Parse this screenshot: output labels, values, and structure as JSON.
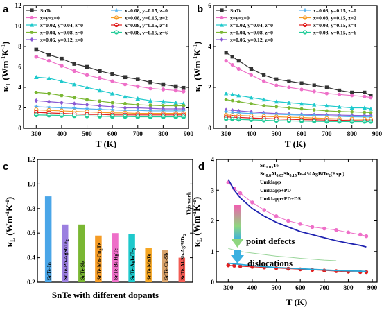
{
  "chart_data": [
    {
      "panel": "a",
      "type": "line",
      "xlabel_main": "T",
      "xlabel_unit": " (K)",
      "ylabel_main": "κ",
      "ylabel_sub": "T",
      "ylabel_unit": " (Wm",
      "ylabel_exp": "-1",
      "ylabel_mid": "K",
      "ylabel_exp2": "-1",
      "ylabel_end": ")",
      "xlim": [
        250,
        900
      ],
      "ylim": [
        0,
        12
      ],
      "xticks": [
        300,
        400,
        500,
        600,
        700,
        800,
        900
      ],
      "yticks": [
        0,
        2,
        4,
        6,
        8,
        10,
        12
      ],
      "x": [
        300,
        350,
        400,
        450,
        500,
        550,
        600,
        650,
        700,
        750,
        800,
        850,
        880
      ],
      "series": [
        {
          "name": "SnTe",
          "color": "#333333",
          "marker": "square",
          "values": [
            7.7,
            7.2,
            6.8,
            6.3,
            6.0,
            5.6,
            5.3,
            5.0,
            4.8,
            4.5,
            4.3,
            4.1,
            3.95
          ]
        },
        {
          "name": "x=y=z=0",
          "color": "#ee6fc8",
          "marker": "circle",
          "values": [
            7.0,
            6.6,
            6.1,
            5.6,
            5.2,
            4.9,
            4.6,
            4.3,
            4.1,
            3.9,
            3.8,
            3.7,
            3.6
          ]
        },
        {
          "name": "x=0.02, y=0.04, z=0",
          "color": "#1ec9cc",
          "marker": "triangle",
          "values": [
            5.0,
            4.9,
            4.6,
            4.3,
            4.0,
            3.7,
            3.4,
            3.1,
            2.9,
            2.7,
            2.6,
            2.5,
            2.4
          ]
        },
        {
          "name": "x=0.04, y=0.08, z=0",
          "color": "#7ab733",
          "marker": "hexagon",
          "values": [
            3.5,
            3.4,
            3.2,
            3.0,
            2.8,
            2.65,
            2.5,
            2.4,
            2.3,
            2.25,
            2.2,
            2.2,
            2.2
          ]
        },
        {
          "name": "x=0.06, y=0.12, z=0",
          "color": "#8a5ad3",
          "marker": "diamond",
          "values": [
            2.7,
            2.6,
            2.5,
            2.4,
            2.3,
            2.2,
            2.1,
            2.0,
            2.0,
            1.95,
            1.9,
            1.9,
            1.9
          ]
        },
        {
          "name": "x=0.08, y=0.15, z=0",
          "color": "#53b2ee",
          "marker": "star",
          "values": [
            2.1,
            2.05,
            2.0,
            1.95,
            1.9,
            1.85,
            1.8,
            1.75,
            1.75,
            1.7,
            1.7,
            1.7,
            1.7
          ]
        },
        {
          "name": "x=0.08, y=0.15, z=2",
          "color": "#f59b24",
          "marker": "halfcircle",
          "values": [
            1.8,
            1.75,
            1.7,
            1.65,
            1.6,
            1.55,
            1.5,
            1.5,
            1.45,
            1.45,
            1.45,
            1.45,
            1.45
          ]
        },
        {
          "name": "x=0.08, y=0.15, z=4",
          "color": "#e01f1f",
          "marker": "halfcircle",
          "values": [
            1.55,
            1.5,
            1.45,
            1.4,
            1.35,
            1.35,
            1.3,
            1.3,
            1.3,
            1.3,
            1.3,
            1.3,
            1.3
          ]
        },
        {
          "name": "x=0.08, y=0.15, z=6",
          "color": "#20cc98",
          "marker": "halfcircle",
          "values": [
            1.3,
            1.28,
            1.25,
            1.22,
            1.2,
            1.18,
            1.15,
            1.15,
            1.12,
            1.12,
            1.12,
            1.12,
            1.12
          ]
        }
      ]
    },
    {
      "panel": "b",
      "type": "line",
      "xlabel_main": "T",
      "xlabel_unit": " (K)",
      "ylabel_main": "κ",
      "ylabel_sub": "L",
      "ylabel_unit": " (Wm",
      "ylabel_exp": "-1",
      "ylabel_mid": "K",
      "ylabel_exp2": "-1",
      "ylabel_end": ")",
      "xlim": [
        250,
        900
      ],
      "ylim": [
        0,
        6
      ],
      "xticks": [
        300,
        400,
        500,
        600,
        700,
        800,
        900
      ],
      "yticks": [
        0,
        2,
        4,
        6
      ],
      "x": [
        300,
        325,
        350,
        400,
        450,
        500,
        550,
        600,
        650,
        700,
        750,
        800,
        850,
        875
      ],
      "series": [
        {
          "name": "SnTe",
          "color": "#333333",
          "marker": "square",
          "values": [
            3.7,
            3.5,
            3.3,
            2.9,
            2.6,
            2.4,
            2.3,
            2.2,
            2.1,
            2.0,
            1.85,
            1.75,
            1.75,
            1.6
          ]
        },
        {
          "name": "x=y=z=0",
          "color": "#ee6fc8",
          "marker": "circle",
          "values": [
            3.3,
            3.1,
            2.9,
            2.6,
            2.3,
            2.1,
            2.0,
            1.9,
            1.8,
            1.7,
            1.65,
            1.6,
            1.55,
            1.5
          ]
        },
        {
          "name": "x=0.02, y=0.04, z=0",
          "color": "#1ec9cc",
          "marker": "triangle",
          "values": [
            1.7,
            1.65,
            1.6,
            1.5,
            1.4,
            1.3,
            1.25,
            1.2,
            1.15,
            1.1,
            1.05,
            1.0,
            1.0,
            0.95
          ]
        },
        {
          "name": "x=0.04, y=0.08, z=0",
          "color": "#7ab733",
          "marker": "hexagon",
          "values": [
            1.4,
            1.35,
            1.3,
            1.2,
            1.1,
            1.05,
            1.0,
            0.95,
            0.9,
            0.85,
            0.82,
            0.8,
            0.78,
            0.76
          ]
        },
        {
          "name": "x=0.06, y=0.12, z=0",
          "color": "#8a5ad3",
          "marker": "diamond",
          "values": [
            0.9,
            0.88,
            0.85,
            0.8,
            0.75,
            0.72,
            0.7,
            0.68,
            0.66,
            0.65,
            0.64,
            0.63,
            0.62,
            0.62
          ]
        },
        {
          "name": "x=0.08, y=0.15, z=0",
          "color": "#53b2ee",
          "marker": "star",
          "values": [
            0.8,
            0.78,
            0.75,
            0.72,
            0.7,
            0.68,
            0.66,
            0.64,
            0.62,
            0.6,
            0.58,
            0.56,
            0.55,
            0.55
          ]
        },
        {
          "name": "x=0.08, y=0.15, z=2",
          "color": "#f59b24",
          "marker": "halfcircle",
          "values": [
            0.65,
            0.63,
            0.62,
            0.6,
            0.58,
            0.56,
            0.54,
            0.52,
            0.5,
            0.48,
            0.46,
            0.45,
            0.44,
            0.44
          ]
        },
        {
          "name": "x=0.08, y=0.15, z=4",
          "color": "#e01f1f",
          "marker": "halfcircle",
          "values": [
            0.55,
            0.54,
            0.53,
            0.5,
            0.48,
            0.46,
            0.44,
            0.42,
            0.41,
            0.4,
            0.39,
            0.38,
            0.37,
            0.37
          ]
        },
        {
          "name": "x=0.08, y=0.15, z=6",
          "color": "#20cc98",
          "marker": "halfcircle",
          "values": [
            0.45,
            0.44,
            0.43,
            0.41,
            0.39,
            0.37,
            0.36,
            0.35,
            0.34,
            0.33,
            0.33,
            0.32,
            0.32,
            0.32
          ]
        }
      ]
    },
    {
      "panel": "c",
      "type": "bar",
      "ylabel_main": "κ",
      "ylabel_sub": "L",
      "ylabel_unit": " (Wm",
      "ylabel_exp": "-1",
      "ylabel_mid": "K",
      "ylabel_exp2": "-1",
      "ylabel_end": ")",
      "xlabel": "SnTe with different dopants",
      "ylim": [
        0.2,
        1.2
      ],
      "yticks": [
        "0.2",
        "0.4",
        "0.6",
        "0.8",
        "1.0",
        "1.2"
      ],
      "categories": [
        "SnTe-In",
        "SnTe-Pb-AgSbTe",
        "SnTe-Sb",
        "SnTe-Mn-Cu",
        "SnTe-Bi-HgTe",
        "SnTe-AgInTe",
        "SnTe-MnTe",
        "SnTe-Cu-Sb",
        "SnTe-Al-Sb-AgBiTe"
      ],
      "category_subscripts": [
        "",
        "2",
        "",
        "2",
        "",
        "2",
        "",
        "",
        "2"
      ],
      "category_tails": [
        "",
        "",
        "",
        "Te",
        "",
        "",
        "",
        "",
        ""
      ],
      "values": [
        0.9,
        0.67,
        0.67,
        0.58,
        0.6,
        0.59,
        0.48,
        0.46,
        0.4
      ],
      "colors": [
        "#4aa6e8",
        "#9b7fe0",
        "#7ab733",
        "#f59b24",
        "#ee6fc8",
        "#1ec9cc",
        "#f5a623",
        "#d9a36b",
        "#f25c54"
      ],
      "annotation": "This work",
      "annotation_color": "#e01f1f"
    },
    {
      "panel": "d",
      "type": "line",
      "xlabel_main": "T",
      "xlabel_unit": " (K)",
      "ylabel_main": "κ",
      "ylabel_sub": "L",
      "ylabel_unit": " (Wm",
      "ylabel_exp": "-1",
      "ylabel_mid": "K",
      "ylabel_exp2": "-1",
      "ylabel_end": ")",
      "xlim": [
        250,
        920
      ],
      "ylim": [
        0,
        4
      ],
      "xticks": [
        300,
        400,
        500,
        600,
        700,
        800,
        900
      ],
      "yticks": [
        0,
        1,
        2,
        3,
        4
      ],
      "x": [
        300,
        325,
        350,
        400,
        450,
        500,
        550,
        600,
        650,
        700,
        750,
        800,
        850,
        875
      ],
      "series": [
        {
          "name": "Sn1.03Te",
          "color": "#ee6fc8",
          "marker": "circle",
          "values": [
            3.25,
            3.05,
            2.9,
            2.6,
            2.35,
            2.15,
            2.0,
            1.9,
            1.8,
            1.75,
            1.7,
            1.62,
            1.55,
            1.5
          ]
        },
        {
          "name": "Sn0.8Al0.05Sb0.15Te-4%AgBiTe2(Exp.)",
          "color": "#e01f1f",
          "marker": "circle",
          "values": [
            0.55,
            0.54,
            0.52,
            0.5,
            0.48,
            0.46,
            0.44,
            0.42,
            0.4,
            0.38,
            0.36,
            0.34,
            0.33,
            0.33
          ]
        },
        {
          "name": "Umklapp",
          "color": "#1e22b0",
          "marker": "none",
          "values": [
            3.35,
            3.0,
            2.75,
            2.4,
            2.15,
            1.95,
            1.8,
            1.65,
            1.55,
            1.45,
            1.35,
            1.27,
            1.2,
            1.15
          ]
        },
        {
          "name": "Umklapp+PD",
          "color": "#9ad59a",
          "marker": "none",
          "values": [
            1.1,
            1.05,
            1.0,
            0.95,
            0.9,
            0.85,
            0.82,
            0.78,
            0.75,
            0.72,
            0.7,
            0.68,
            0.66,
            0.65
          ]
        },
        {
          "name": "Umklapp+PD+DS",
          "color": "#2aa6d6",
          "marker": "none",
          "values": [
            0.62,
            0.6,
            0.58,
            0.54,
            0.51,
            0.48,
            0.46,
            0.44,
            0.42,
            0.4,
            0.38,
            0.37,
            0.36,
            0.35
          ]
        }
      ],
      "legend_plain": [
        "Sn",
        "1.03",
        "Te"
      ],
      "legend_red": [
        "Sn",
        "0.8",
        "Al",
        "0.05",
        "Sb",
        "0.15",
        "Te-4%AgBiTe",
        "2",
        "(Exp.)"
      ],
      "legend_items": [
        "Umklapp",
        "Umklapp+PD",
        "Umklapp+PD+DS"
      ],
      "annotations": [
        "point defects",
        "dislocations"
      ]
    }
  ],
  "legend_ab": {
    "col1": [
      "SnTe",
      "x=y=z=0",
      "x=0.02, y=0.04, z=0",
      "x=0.04, y=0.08, z=0",
      "x=0.06, y=0.12, z=0"
    ],
    "col2": [
      "x=0.08, y=0.15, z=0",
      "x=0.08, y=0.15, z=2",
      "x=0.08, y=0.15, z=4",
      "x=0.08, y=0.15, z=6"
    ]
  },
  "panel_labels": [
    "a",
    "b",
    "c",
    "d"
  ]
}
